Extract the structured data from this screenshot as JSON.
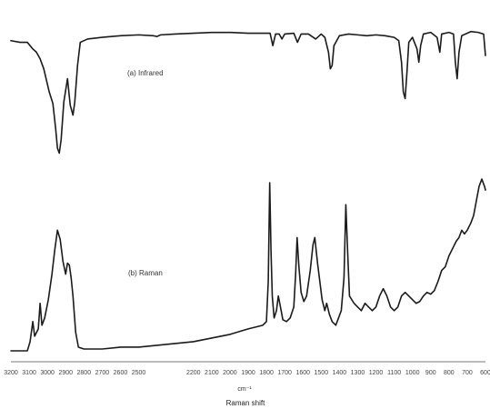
{
  "chart_data": {
    "type": "line",
    "title": "",
    "xlabel": "Raman shift",
    "x_unit_label": "cm⁻¹",
    "xlim": [
      3200,
      600
    ],
    "x_reversed": true,
    "ylabel": "",
    "grid": false,
    "legend": "none",
    "ticks": [
      "3200",
      "3100",
      "3000",
      "2900",
      "2800",
      "2700",
      "2600",
      "2500",
      "2400",
      "2300",
      "2200",
      "2100",
      "2000",
      "1900",
      "1800",
      "1700",
      "1600",
      "1500",
      "1400",
      "1300",
      "1200",
      "1100",
      "1000",
      "900",
      "800",
      "700",
      "600"
    ],
    "tick_label_text": [
      "3200",
      "3100",
      "3000",
      "2900",
      "2800",
      "2700",
      "2600",
      "2500",
      "2200",
      "2100",
      "2000",
      "1900",
      "1800",
      "1700",
      "1600",
      "1500",
      "1400",
      "1300",
      "1200",
      "1100",
      "1000",
      "900",
      "800",
      "700",
      "600"
    ],
    "series": [
      {
        "name": "(a) Infrared",
        "relative_scale": "transmittance (relative, 1 = baseline top)",
        "points": [
          [
            3200,
            0.93
          ],
          [
            3150,
            0.92
          ],
          [
            3110,
            0.92
          ],
          [
            3080,
            0.88
          ],
          [
            3060,
            0.86
          ],
          [
            3040,
            0.82
          ],
          [
            3020,
            0.76
          ],
          [
            2990,
            0.62
          ],
          [
            2970,
            0.55
          ],
          [
            2955,
            0.4
          ],
          [
            2945,
            0.28
          ],
          [
            2935,
            0.25
          ],
          [
            2925,
            0.33
          ],
          [
            2910,
            0.56
          ],
          [
            2890,
            0.7
          ],
          [
            2875,
            0.54
          ],
          [
            2860,
            0.48
          ],
          [
            2850,
            0.56
          ],
          [
            2835,
            0.78
          ],
          [
            2820,
            0.92
          ],
          [
            2780,
            0.94
          ],
          [
            2700,
            0.95
          ],
          [
            2600,
            0.96
          ],
          [
            2500,
            0.965
          ],
          [
            2420,
            0.96
          ],
          [
            2400,
            0.955
          ],
          [
            2380,
            0.965
          ],
          [
            2300,
            0.97
          ],
          [
            2200,
            0.975
          ],
          [
            2100,
            0.98
          ],
          [
            2000,
            0.98
          ],
          [
            1900,
            0.975
          ],
          [
            1780,
            0.975
          ],
          [
            1765,
            0.9
          ],
          [
            1750,
            0.97
          ],
          [
            1730,
            0.97
          ],
          [
            1715,
            0.94
          ],
          [
            1700,
            0.97
          ],
          [
            1650,
            0.975
          ],
          [
            1630,
            0.92
          ],
          [
            1610,
            0.97
          ],
          [
            1570,
            0.97
          ],
          [
            1530,
            0.94
          ],
          [
            1500,
            0.97
          ],
          [
            1480,
            0.95
          ],
          [
            1460,
            0.86
          ],
          [
            1450,
            0.76
          ],
          [
            1440,
            0.78
          ],
          [
            1430,
            0.9
          ],
          [
            1400,
            0.96
          ],
          [
            1350,
            0.97
          ],
          [
            1300,
            0.965
          ],
          [
            1250,
            0.96
          ],
          [
            1200,
            0.965
          ],
          [
            1150,
            0.96
          ],
          [
            1100,
            0.95
          ],
          [
            1075,
            0.93
          ],
          [
            1060,
            0.8
          ],
          [
            1050,
            0.62
          ],
          [
            1040,
            0.58
          ],
          [
            1030,
            0.74
          ],
          [
            1020,
            0.92
          ],
          [
            1000,
            0.95
          ],
          [
            975,
            0.88
          ],
          [
            965,
            0.8
          ],
          [
            955,
            0.9
          ],
          [
            940,
            0.97
          ],
          [
            900,
            0.98
          ],
          [
            865,
            0.95
          ],
          [
            850,
            0.86
          ],
          [
            840,
            0.97
          ],
          [
            800,
            0.98
          ],
          [
            775,
            0.97
          ],
          [
            765,
            0.8
          ],
          [
            755,
            0.7
          ],
          [
            745,
            0.86
          ],
          [
            730,
            0.96
          ],
          [
            680,
            0.985
          ],
          [
            640,
            0.98
          ],
          [
            610,
            0.97
          ],
          [
            600,
            0.84
          ]
        ]
      },
      {
        "name": "(b) Raman",
        "relative_scale": "intensity (relative, 0 = baseline)",
        "points": [
          [
            3200,
            0.0
          ],
          [
            3110,
            0.0
          ],
          [
            3095,
            0.05
          ],
          [
            3080,
            0.16
          ],
          [
            3070,
            0.08
          ],
          [
            3050,
            0.12
          ],
          [
            3040,
            0.26
          ],
          [
            3030,
            0.14
          ],
          [
            3015,
            0.18
          ],
          [
            2995,
            0.28
          ],
          [
            2975,
            0.42
          ],
          [
            2960,
            0.55
          ],
          [
            2945,
            0.66
          ],
          [
            2930,
            0.61
          ],
          [
            2915,
            0.49
          ],
          [
            2900,
            0.42
          ],
          [
            2890,
            0.48
          ],
          [
            2880,
            0.47
          ],
          [
            2870,
            0.4
          ],
          [
            2860,
            0.3
          ],
          [
            2845,
            0.1
          ],
          [
            2830,
            0.02
          ],
          [
            2800,
            0.01
          ],
          [
            2700,
            0.01
          ],
          [
            2600,
            0.02
          ],
          [
            2500,
            0.02
          ],
          [
            2400,
            0.03
          ],
          [
            2300,
            0.04
          ],
          [
            2200,
            0.05
          ],
          [
            2100,
            0.07
          ],
          [
            2000,
            0.09
          ],
          [
            1900,
            0.12
          ],
          [
            1820,
            0.14
          ],
          [
            1800,
            0.16
          ],
          [
            1790,
            0.38
          ],
          [
            1782,
            0.92
          ],
          [
            1775,
            0.55
          ],
          [
            1768,
            0.3
          ],
          [
            1758,
            0.18
          ],
          [
            1745,
            0.22
          ],
          [
            1735,
            0.3
          ],
          [
            1725,
            0.25
          ],
          [
            1710,
            0.17
          ],
          [
            1690,
            0.16
          ],
          [
            1670,
            0.18
          ],
          [
            1650,
            0.24
          ],
          [
            1640,
            0.42
          ],
          [
            1632,
            0.62
          ],
          [
            1622,
            0.46
          ],
          [
            1610,
            0.32
          ],
          [
            1595,
            0.27
          ],
          [
            1580,
            0.3
          ],
          [
            1560,
            0.44
          ],
          [
            1545,
            0.58
          ],
          [
            1535,
            0.62
          ],
          [
            1520,
            0.48
          ],
          [
            1505,
            0.36
          ],
          [
            1495,
            0.28
          ],
          [
            1480,
            0.22
          ],
          [
            1470,
            0.26
          ],
          [
            1455,
            0.2
          ],
          [
            1440,
            0.16
          ],
          [
            1420,
            0.14
          ],
          [
            1405,
            0.18
          ],
          [
            1390,
            0.22
          ],
          [
            1375,
            0.4
          ],
          [
            1365,
            0.8
          ],
          [
            1355,
            0.54
          ],
          [
            1345,
            0.3
          ],
          [
            1320,
            0.26
          ],
          [
            1300,
            0.24
          ],
          [
            1280,
            0.22
          ],
          [
            1260,
            0.26
          ],
          [
            1240,
            0.24
          ],
          [
            1220,
            0.22
          ],
          [
            1200,
            0.24
          ],
          [
            1180,
            0.3
          ],
          [
            1160,
            0.34
          ],
          [
            1140,
            0.3
          ],
          [
            1120,
            0.24
          ],
          [
            1100,
            0.22
          ],
          [
            1080,
            0.24
          ],
          [
            1060,
            0.3
          ],
          [
            1040,
            0.32
          ],
          [
            1020,
            0.3
          ],
          [
            1000,
            0.28
          ],
          [
            980,
            0.26
          ],
          [
            960,
            0.27
          ],
          [
            940,
            0.3
          ],
          [
            920,
            0.32
          ],
          [
            900,
            0.31
          ],
          [
            880,
            0.33
          ],
          [
            860,
            0.38
          ],
          [
            840,
            0.44
          ],
          [
            820,
            0.46
          ],
          [
            800,
            0.52
          ],
          [
            780,
            0.56
          ],
          [
            760,
            0.6
          ],
          [
            745,
            0.62
          ],
          [
            730,
            0.66
          ],
          [
            715,
            0.64
          ],
          [
            700,
            0.66
          ],
          [
            680,
            0.7
          ],
          [
            665,
            0.74
          ],
          [
            650,
            0.82
          ],
          [
            635,
            0.9
          ],
          [
            620,
            0.94
          ],
          [
            605,
            0.9
          ],
          [
            600,
            0.88
          ]
        ]
      }
    ]
  },
  "labels": {
    "infrared": "(a) Infrared",
    "raman": "(b) Raman",
    "unit": "cm⁻¹",
    "xlabel": "Raman shift"
  }
}
